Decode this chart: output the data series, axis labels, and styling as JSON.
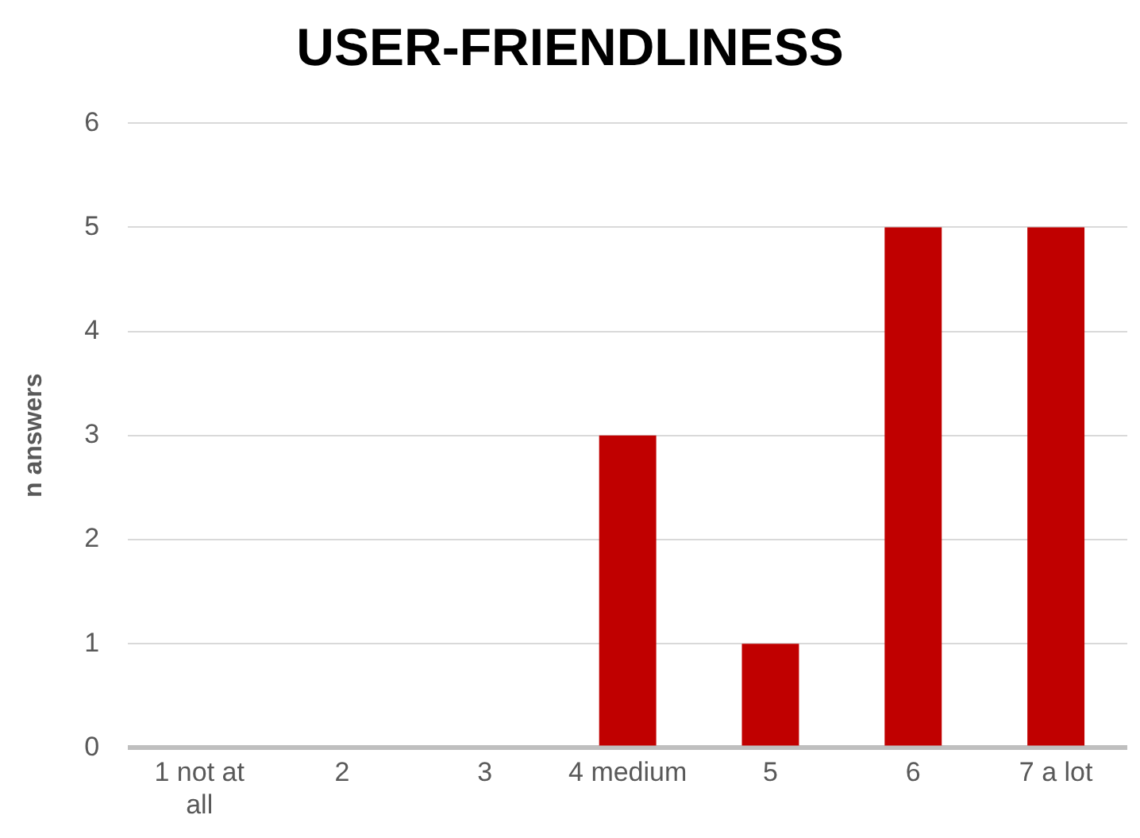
{
  "chart_data": {
    "type": "bar",
    "title": "USER-FRIENDLINESS",
    "ylabel": "n answers",
    "categories": [
      "1 not at all",
      "2",
      "3",
      "4 medium",
      "5",
      "6",
      "7 a lot"
    ],
    "values": [
      0,
      0,
      0,
      3,
      1,
      5,
      5
    ],
    "color": "#c00000",
    "ylim": [
      0,
      6
    ],
    "yticks": [
      0,
      1,
      2,
      3,
      4,
      5,
      6
    ],
    "grid": "y",
    "legend": false
  }
}
